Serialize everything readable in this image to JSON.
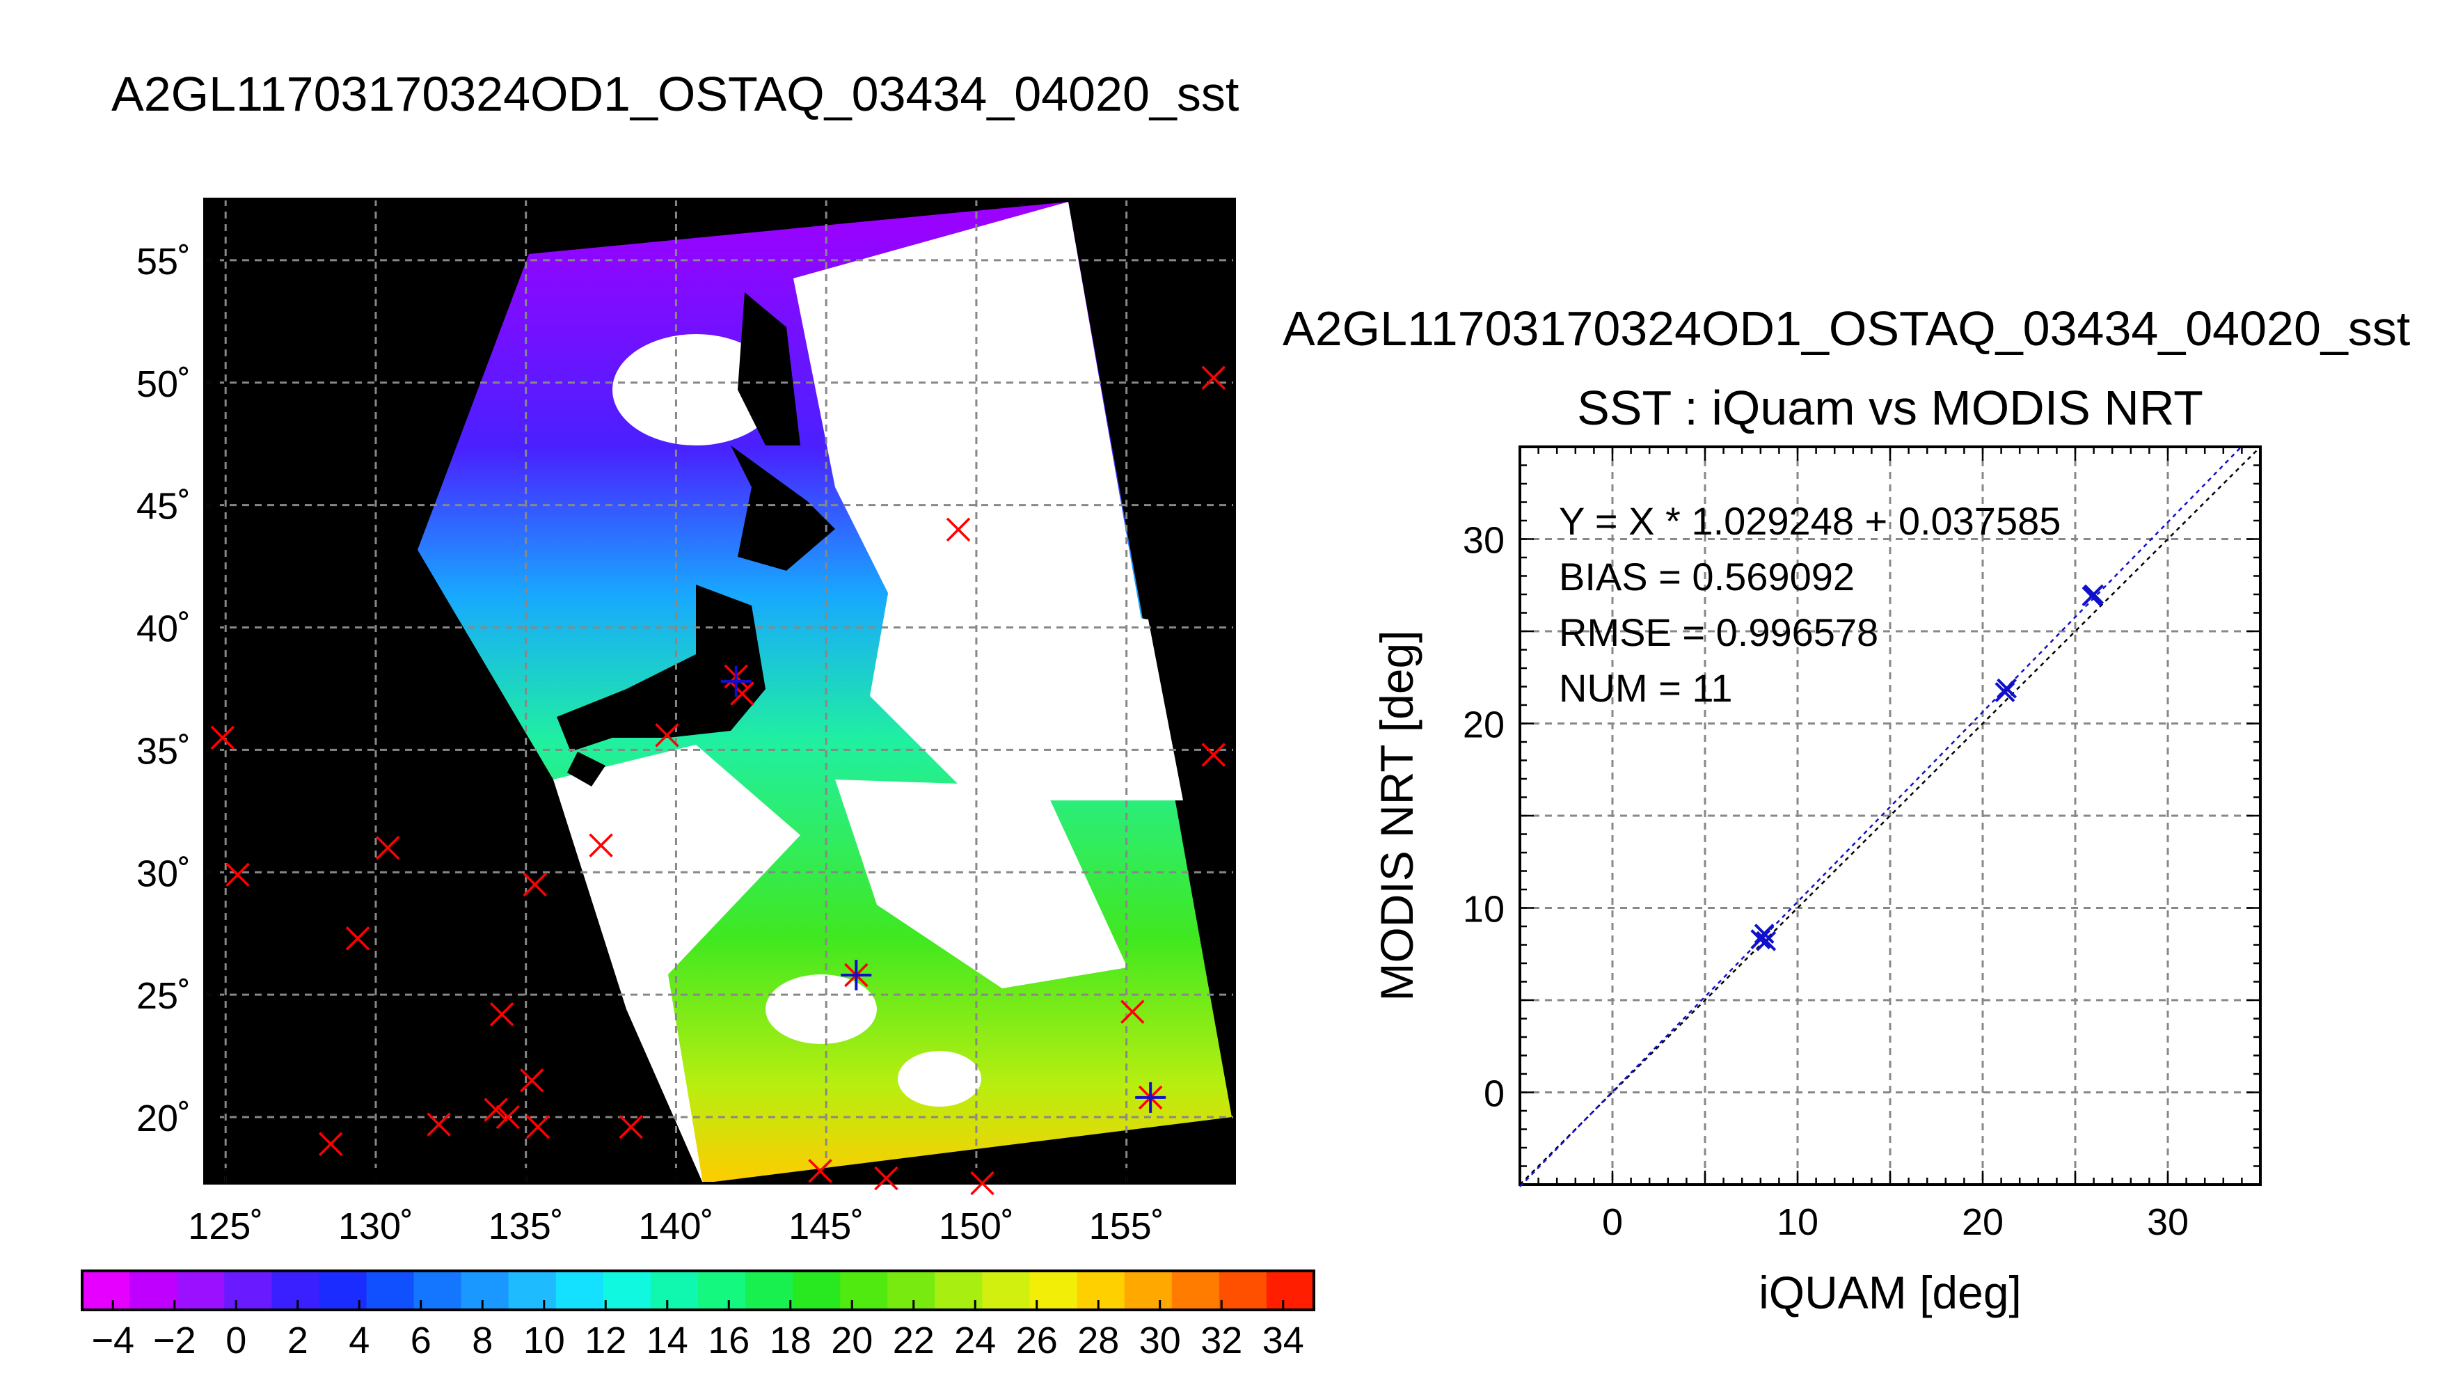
{
  "page_title": "A2GL11703170324OD1_OSTAQ_03434_04020_sst",
  "chart_data": [
    {
      "type": "map",
      "title": "A2GL11703170324OD1_OSTAQ_03434_04020_sst",
      "lon_range": [
        124.3,
        158.6
      ],
      "lat_range": [
        17.3,
        57.5
      ],
      "grid": true,
      "lon_ticks": [
        "125˚",
        "130˚",
        "135˚",
        "140˚",
        "145˚",
        "150˚",
        "155˚"
      ],
      "lon_tick_values": [
        125,
        130,
        135,
        140,
        145,
        150,
        155
      ],
      "lat_ticks": [
        "55˚",
        "50˚",
        "45˚",
        "40˚",
        "35˚",
        "30˚",
        "25˚",
        "20˚"
      ],
      "lat_tick_values": [
        55,
        50,
        45,
        40,
        35,
        30,
        25,
        20
      ],
      "matchup_points": [
        {
          "lon": 157.9,
          "lat": 50.2
        },
        {
          "lon": 149.4,
          "lat": 44.0
        },
        {
          "lon": 142.0,
          "lat": 38.0
        },
        {
          "lon": 142.2,
          "lat": 37.3
        },
        {
          "lon": 139.7,
          "lat": 35.6
        },
        {
          "lon": 124.9,
          "lat": 35.5
        },
        {
          "lon": 157.9,
          "lat": 34.8
        },
        {
          "lon": 137.5,
          "lat": 31.1
        },
        {
          "lon": 130.4,
          "lat": 31.0
        },
        {
          "lon": 125.4,
          "lat": 29.9
        },
        {
          "lon": 135.3,
          "lat": 29.5
        },
        {
          "lon": 129.4,
          "lat": 27.3
        },
        {
          "lon": 146.0,
          "lat": 25.8
        },
        {
          "lon": 134.2,
          "lat": 24.2
        },
        {
          "lon": 155.2,
          "lat": 24.3
        },
        {
          "lon": 135.2,
          "lat": 21.5
        },
        {
          "lon": 155.8,
          "lat": 20.8
        },
        {
          "lon": 134.0,
          "lat": 20.3
        },
        {
          "lon": 134.4,
          "lat": 20.0
        },
        {
          "lon": 132.1,
          "lat": 19.7
        },
        {
          "lon": 135.4,
          "lat": 19.6
        },
        {
          "lon": 138.5,
          "lat": 19.6
        },
        {
          "lon": 128.5,
          "lat": 18.9
        },
        {
          "lon": 144.8,
          "lat": 17.8
        },
        {
          "lon": 147.0,
          "lat": 17.5
        },
        {
          "lon": 150.2,
          "lat": 17.3
        }
      ],
      "match_points_blue": [
        {
          "lon": 142.0,
          "lat": 37.8
        },
        {
          "lon": 146.0,
          "lat": 25.8
        },
        {
          "lon": 155.8,
          "lat": 20.8
        }
      ]
    },
    {
      "type": "colorbar",
      "range": [
        -5,
        35
      ],
      "tick_labels": [
        "−4",
        "−2",
        "0",
        "2",
        "4",
        "6",
        "8",
        "10",
        "12",
        "14",
        "16",
        "18",
        "20",
        "22",
        "24",
        "26",
        "28",
        "30",
        "32",
        "34"
      ],
      "tick_values": [
        -4,
        -2,
        0,
        2,
        4,
        6,
        8,
        10,
        12,
        14,
        16,
        18,
        20,
        22,
        24,
        26,
        28,
        30,
        32,
        34
      ],
      "colors": [
        "#e600ff",
        "#c000ff",
        "#9a10ff",
        "#6a1aff",
        "#3a20ff",
        "#1a2cff",
        "#1050ff",
        "#1476ff",
        "#1a98ff",
        "#1ebcff",
        "#14e0ff",
        "#10f8e0",
        "#10f8b0",
        "#14f880",
        "#18f050",
        "#28e820",
        "#50ea10",
        "#78ea10",
        "#a8ee10",
        "#d2f010",
        "#f2ee08",
        "#ffd000",
        "#ffa800",
        "#ff7c00",
        "#ff5000",
        "#ff1e00"
      ]
    },
    {
      "type": "scatter",
      "title": "SST : iQuam vs MODIS NRT",
      "xlabel": "iQUAM [deg]",
      "ylabel": "MODIS NRT [deg]",
      "xlim": [
        -5,
        35
      ],
      "ylim": [
        -5,
        35
      ],
      "x_ticks": [
        "0",
        "10",
        "20",
        "30"
      ],
      "x_tick_values": [
        0,
        10,
        20,
        30
      ],
      "y_ticks": [
        "0",
        "10",
        "20",
        "30"
      ],
      "y_tick_values": [
        0,
        10,
        20,
        30
      ],
      "grid": true,
      "points": [
        {
          "x": 8.0,
          "y": 8.3
        },
        {
          "x": 8.2,
          "y": 8.6
        },
        {
          "x": 8.3,
          "y": 8.2
        },
        {
          "x": 21.3,
          "y": 21.9
        },
        {
          "x": 21.2,
          "y": 21.7
        },
        {
          "x": 25.9,
          "y": 26.9
        },
        {
          "x": 26.0,
          "y": 27.0
        }
      ],
      "regression": {
        "slope": 1.029248,
        "intercept": 0.037585
      },
      "stats": [
        "Y = X * 1.029248 + 0.037585",
        "BIAS = 0.569092",
        "RMSE = 0.996578",
        "NUM = 11"
      ]
    }
  ]
}
